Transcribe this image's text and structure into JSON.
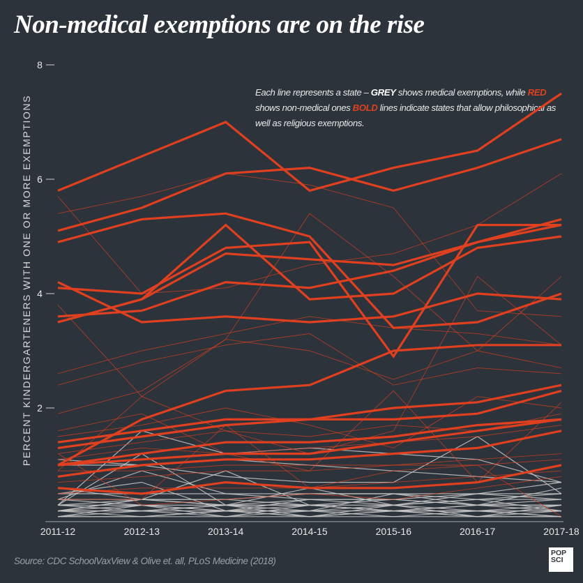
{
  "title": "Non-medical exemptions are on the rise",
  "note": {
    "p1": "Each line represents a state – ",
    "grey": "GREY",
    "p2": " shows medical exemptions, while ",
    "red": "RED",
    "p3": " shows non-medical ones  ",
    "bold": "BOLD",
    "p4": " lines indicate states that allow philosophical as well as religious exemptions."
  },
  "source": "Source: CDC SchoolVaxView & Olive et. all, PLoS Medicine (2018)",
  "logo": {
    "line1": "POP",
    "line2": "SCI"
  },
  "colors": {
    "background": "#2c333b",
    "non_medical": "#e0401f",
    "medical": "#c8c8c8"
  },
  "chart_data": {
    "type": "line",
    "title": "Non-medical exemptions are on the rise",
    "xlabel": "",
    "ylabel": "PERCENT KINDERGARTENERS WITH ONE OR MORE EXEMPTIONS",
    "categories": [
      "2011-12",
      "2012-13",
      "2013-14",
      "2014-15",
      "2015-16",
      "2016-17",
      "2017-18"
    ],
    "y_ticks": [
      "8",
      "6",
      "4",
      "2"
    ],
    "y_tick_values": [
      8,
      6,
      4,
      2
    ],
    "ylim": [
      0,
      8
    ],
    "grid": false,
    "series_groups": [
      {
        "group": "non-medical, philosophical + religious (bold red)",
        "color": "#e0401f",
        "bold": true,
        "lines": [
          [
            5.8,
            6.4,
            7.0,
            5.8,
            6.2,
            6.5,
            7.5
          ],
          [
            5.1,
            5.5,
            6.1,
            6.2,
            5.8,
            6.2,
            6.7
          ],
          [
            4.9,
            5.3,
            5.4,
            5.0,
            3.4,
            3.5,
            4.0
          ],
          [
            3.5,
            3.9,
            5.2,
            3.9,
            4.0,
            4.8,
            5.0
          ],
          [
            4.1,
            4.0,
            4.8,
            4.9,
            2.9,
            5.2,
            5.2
          ],
          [
            3.6,
            3.7,
            4.2,
            4.1,
            4.4,
            4.9,
            5.3
          ],
          [
            4.2,
            3.5,
            3.6,
            3.5,
            3.6,
            4.0,
            3.9
          ],
          [
            3.5,
            3.9,
            4.7,
            4.6,
            4.5,
            4.9,
            5.2
          ],
          [
            1.0,
            1.8,
            2.3,
            2.4,
            3.0,
            3.1,
            3.1
          ],
          [
            1.4,
            1.6,
            1.8,
            1.8,
            2.0,
            2.1,
            2.4
          ],
          [
            1.3,
            1.5,
            1.7,
            1.8,
            1.8,
            1.9,
            2.3
          ],
          [
            1.0,
            1.2,
            1.4,
            1.4,
            1.5,
            1.7,
            1.8
          ],
          [
            1.0,
            1.1,
            1.2,
            1.2,
            1.4,
            1.6,
            1.8
          ],
          [
            0.8,
            1.0,
            1.1,
            1.1,
            1.2,
            1.3,
            1.6
          ],
          [
            0.6,
            0.5,
            0.7,
            0.6,
            0.6,
            0.7,
            1.0
          ]
        ]
      },
      {
        "group": "non-medical, religious only (thin red)",
        "color": "#e0401f",
        "bold": false,
        "lines": [
          [
            5.4,
            5.7,
            6.1,
            5.9,
            5.5,
            3.7,
            3.6
          ],
          [
            5.7,
            4.0,
            4.1,
            4.5,
            4.7,
            5.2,
            6.1
          ],
          [
            3.8,
            2.2,
            1.6,
            1.2,
            1.6,
            4.3,
            3.1
          ],
          [
            2.6,
            3.0,
            3.3,
            3.6,
            3.4,
            3.3,
            3.1
          ],
          [
            2.4,
            2.8,
            3.1,
            3.3,
            2.4,
            2.7,
            2.6
          ],
          [
            1.9,
            2.3,
            3.2,
            3.0,
            2.5,
            3.0,
            2.7
          ],
          [
            0.9,
            2.2,
            3.2,
            5.4,
            4.3,
            3.0,
            4.3
          ],
          [
            1.5,
            1.7,
            2.0,
            1.7,
            1.3,
            2.2,
            2.0
          ],
          [
            1.2,
            1.4,
            1.6,
            1.5,
            1.7,
            1.6,
            1.9
          ],
          [
            1.1,
            1.3,
            1.2,
            1.3,
            1.4,
            1.5,
            1.7
          ],
          [
            0.9,
            0.9,
            1.0,
            1.0,
            1.0,
            1.1,
            1.2
          ],
          [
            0.7,
            0.8,
            0.9,
            0.9,
            1.0,
            1.0,
            1.1
          ],
          [
            0.5,
            0.6,
            0.6,
            0.6,
            0.7,
            0.8,
            0.9
          ],
          [
            1.2,
            0.3,
            0.4,
            0.5,
            0.4,
            0.6,
            0.8
          ],
          [
            0.4,
            0.4,
            1.7,
            0.6,
            0.9,
            1.0,
            0.1
          ],
          [
            1.6,
            1.9,
            1.2,
            0.9,
            2.3,
            0.7,
            2.1
          ]
        ]
      },
      {
        "group": "medical (grey)",
        "color": "#c8c8c8",
        "bold": false,
        "lines": [
          [
            0.3,
            1.6,
            1.2,
            1.3,
            1.2,
            1.1,
            0.7
          ],
          [
            0.3,
            1.2,
            0.3,
            0.3,
            0.2,
            0.2,
            0.3
          ],
          [
            0.5,
            0.7,
            0.2,
            0.3,
            0.2,
            0.2,
            0.2
          ],
          [
            0.2,
            0.4,
            0.9,
            0.3,
            0.4,
            0.3,
            0.4
          ],
          [
            0.4,
            0.4,
            0.4,
            0.5,
            0.5,
            0.4,
            0.4
          ],
          [
            0.3,
            0.3,
            0.3,
            0.4,
            0.3,
            0.4,
            0.5
          ],
          [
            0.2,
            0.2,
            0.2,
            0.2,
            0.2,
            0.3,
            0.3
          ],
          [
            0.1,
            0.1,
            0.1,
            0.1,
            0.1,
            0.1,
            0.1
          ],
          [
            0.2,
            0.3,
            0.1,
            0.2,
            0.3,
            0.2,
            0.2
          ],
          [
            0.3,
            0.2,
            0.3,
            0.3,
            0.2,
            0.3,
            0.3
          ],
          [
            0.4,
            0.3,
            0.2,
            0.4,
            0.4,
            0.3,
            0.6
          ],
          [
            0.1,
            0.2,
            0.3,
            0.1,
            0.2,
            0.1,
            0.2
          ],
          [
            0.2,
            0.1,
            0.2,
            0.2,
            0.1,
            0.2,
            0.1
          ],
          [
            0.5,
            0.5,
            0.5,
            0.5,
            0.5,
            0.5,
            0.5
          ],
          [
            0.6,
            0.4,
            0.3,
            0.6,
            0.3,
            0.5,
            0.4
          ],
          [
            0.1,
            0.3,
            0.2,
            0.1,
            0.3,
            0.1,
            0.3
          ],
          [
            0.3,
            0.4,
            0.4,
            0.3,
            0.3,
            0.4,
            0.2
          ],
          [
            0.2,
            0.2,
            0.1,
            0.3,
            0.2,
            0.2,
            0.1
          ],
          [
            1.0,
            1.0,
            1.1,
            1.0,
            0.9,
            0.8,
            0.7
          ],
          [
            1.1,
            1.0,
            0.8,
            0.7,
            0.7,
            1.5,
            0.5
          ],
          [
            0.4,
            0.9,
            0.5,
            0.4,
            0.4,
            0.5,
            0.7
          ],
          [
            0.2,
            0.4,
            0.3,
            0.2,
            0.5,
            0.3,
            0.2
          ],
          [
            0.1,
            0.1,
            0.2,
            0.1,
            0.2,
            0.1,
            0.1
          ]
        ]
      }
    ]
  }
}
